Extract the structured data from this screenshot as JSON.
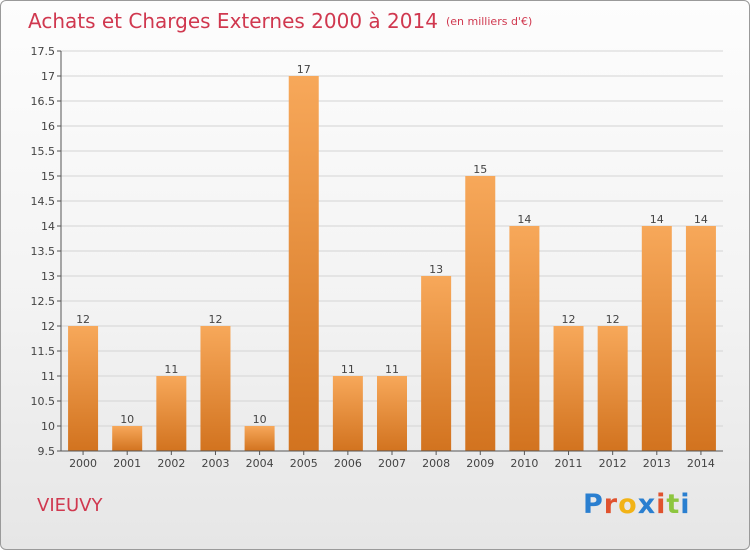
{
  "title": "Achats et Charges Externes 2000 à 2014",
  "subtitle": "(en milliers d'€)",
  "commune": "VIEUVY",
  "logo": {
    "text": "Proxiti",
    "letter_colors": [
      "#2a7fd0",
      "#e0522e",
      "#f2b316",
      "#2a7fd0",
      "#e0522e",
      "#8dc63f",
      "#2a7fd0"
    ]
  },
  "colors": {
    "title": "#d0384f",
    "bar_light": "#f7a85a",
    "bar_dark": "#d2731f",
    "grid": "#d4d4d4",
    "axis": "#555555"
  },
  "chart_data": {
    "type": "bar",
    "title": "Achats et Charges Externes 2000 à 2014",
    "xlabel": "",
    "ylabel": "",
    "categories": [
      "2000",
      "2001",
      "2002",
      "2003",
      "2004",
      "2005",
      "2006",
      "2007",
      "2008",
      "2009",
      "2010",
      "2011",
      "2012",
      "2013",
      "2014"
    ],
    "values": [
      12,
      10,
      11,
      12,
      10,
      17,
      11,
      11,
      13,
      15,
      14,
      12,
      12,
      14,
      14
    ],
    "ylim": [
      9.5,
      17.5
    ],
    "yticks": [
      9.5,
      10,
      10.5,
      11,
      11.5,
      12,
      12.5,
      13,
      13.5,
      14,
      14.5,
      15,
      15.5,
      16,
      16.5,
      17,
      17.5
    ],
    "grid": true,
    "legend": "none"
  }
}
